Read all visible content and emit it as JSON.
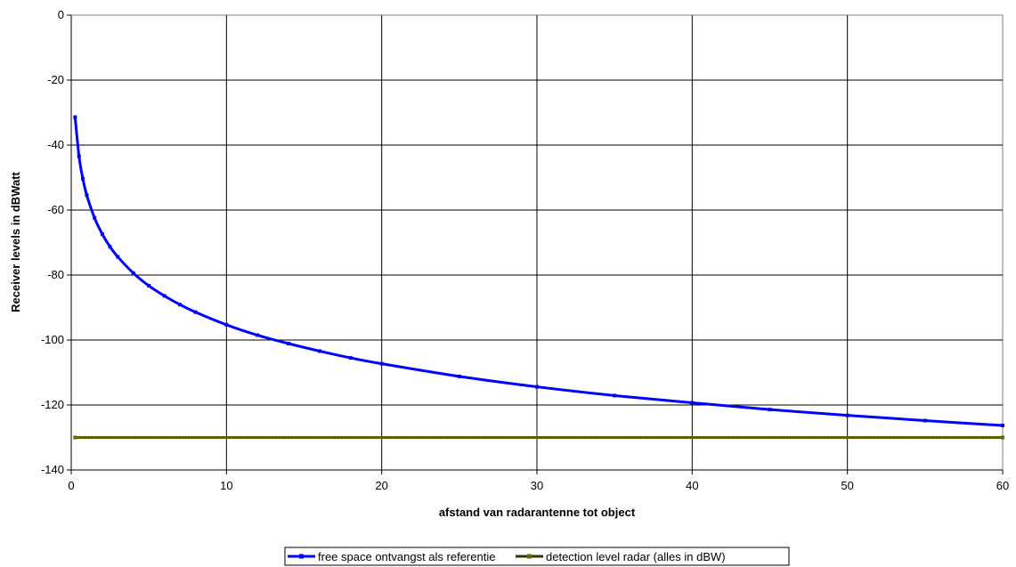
{
  "chart_data": {
    "type": "line",
    "title": "",
    "xlabel": "afstand van radarantenne tot object",
    "ylabel": "Receiver levels in dBWatt",
    "xlim": [
      0,
      60
    ],
    "ylim": [
      -140,
      0
    ],
    "xticks": [
      0,
      10,
      20,
      30,
      40,
      50,
      60
    ],
    "yticks": [
      0,
      -20,
      -40,
      -60,
      -80,
      -100,
      -120,
      -140
    ],
    "xtick_labels": [
      "0",
      "10",
      "20",
      "30",
      "40",
      "50",
      "60"
    ],
    "ytick_labels": [
      "0",
      "-20",
      "-40",
      "-60",
      "-80",
      "-100",
      "-120",
      "-140"
    ],
    "grid": true,
    "legend_position": "bottom-center",
    "series": [
      {
        "name": "free space ontvangst als referentie",
        "color": "#0000ff",
        "marker": "small-square",
        "x": [
          0.25,
          0.5,
          0.75,
          1,
          1.5,
          2,
          2.5,
          3,
          4,
          5,
          6,
          7,
          8,
          10,
          12,
          14,
          16,
          18,
          20,
          25,
          30,
          35,
          40,
          45,
          50,
          55,
          60
        ],
        "y": [
          -31.4,
          -43.4,
          -50.4,
          -55.4,
          -62.4,
          -67.4,
          -71.3,
          -74.4,
          -79.4,
          -83.3,
          -86.4,
          -89.1,
          -91.4,
          -95.3,
          -98.5,
          -101.1,
          -103.4,
          -105.5,
          -107.3,
          -111.2,
          -114.4,
          -117.1,
          -119.3,
          -121.4,
          -123.2,
          -124.8,
          -126.3
        ]
      },
      {
        "name": "detection level radar (alles in dBW)",
        "color": "#333300",
        "marker": "small-square",
        "x": [
          0.25,
          60
        ],
        "y": [
          -130,
          -130
        ]
      }
    ]
  }
}
